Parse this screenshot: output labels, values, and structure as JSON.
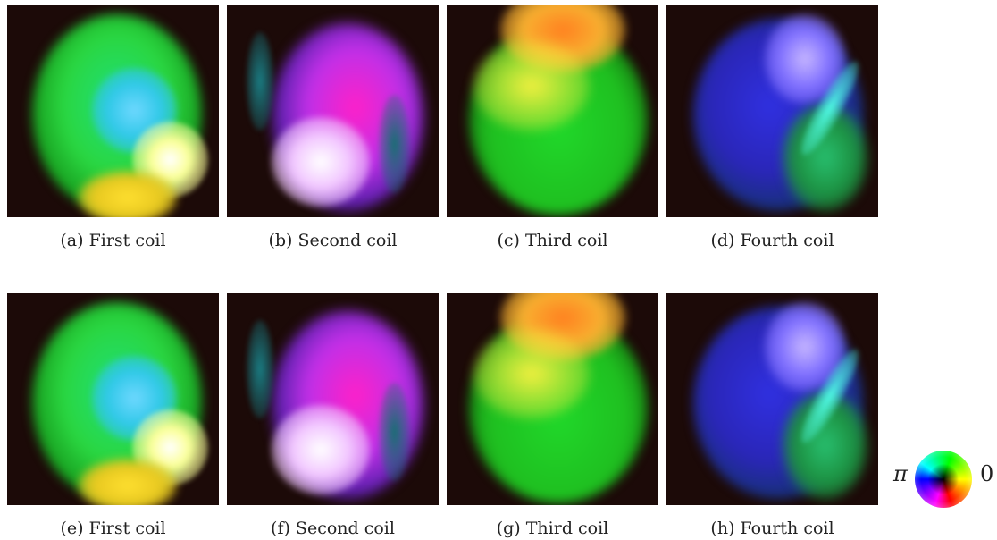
{
  "panels": [
    {
      "label": "(a) First coil"
    },
    {
      "label": "(b) Second coil"
    },
    {
      "label": "(c) Third coil"
    },
    {
      "label": "(d) Fourth coil"
    },
    {
      "label": "(e) First coil"
    },
    {
      "label": "(f) Second coil"
    },
    {
      "label": "(g) Third coil"
    },
    {
      "label": "(h) Fourth coil"
    }
  ],
  "legend": {
    "left_label": "π",
    "right_label": "0"
  }
}
